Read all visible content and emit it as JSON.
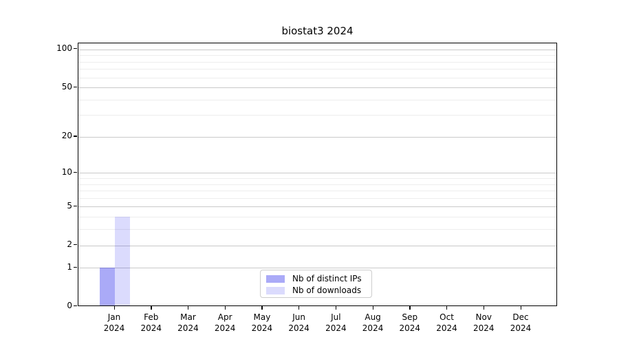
{
  "chart_data": {
    "type": "bar",
    "title": "biostat3 2024",
    "categories": [
      "Jan 2024",
      "Feb 2024",
      "Mar 2024",
      "Apr 2024",
      "May 2024",
      "Jun 2024",
      "Jul 2024",
      "Aug 2024",
      "Sep 2024",
      "Oct 2024",
      "Nov 2024",
      "Dec 2024"
    ],
    "series": [
      {
        "name": "Nb of distinct IPs",
        "key": "distinct-ips",
        "color_hex": "#a9a9f7",
        "fill": "rgba(5,5,232,0.34)",
        "values": [
          1,
          0,
          0,
          0,
          0,
          0,
          0,
          0,
          0,
          0,
          0,
          0
        ]
      },
      {
        "name": "Nb of downloads",
        "key": "downloads",
        "color_hex": "#dbdbf9",
        "fill": "rgba(0,0,240,0.14)",
        "values": [
          4,
          0,
          0,
          0,
          0,
          0,
          0,
          0,
          0,
          0,
          0,
          0
        ]
      }
    ],
    "yscale": "log1p",
    "ylim": [
      0,
      110
    ],
    "y_major_ticks": [
      0,
      1,
      2,
      5,
      10,
      20,
      50,
      100
    ],
    "y_minor_ticks": [
      3,
      4,
      6,
      7,
      8,
      9,
      30,
      40,
      60,
      70,
      80,
      90
    ],
    "grid": {
      "horizontal": true,
      "vertical": false,
      "major_color": "#c9c9c9",
      "minor_color": "#ededed"
    },
    "axis_color": "#000000",
    "legend": {
      "position": "lower center",
      "entries": [
        "Nb of distinct IPs",
        "Nb of downloads"
      ]
    }
  }
}
